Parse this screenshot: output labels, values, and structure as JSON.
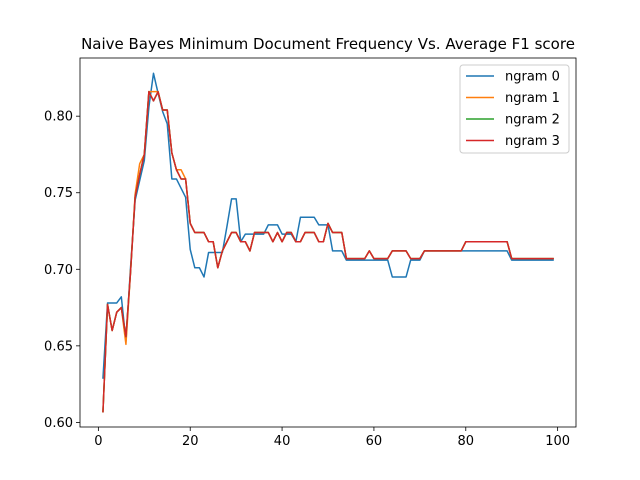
{
  "chart_data": {
    "type": "line",
    "title": "Naive Bayes Minimum Document Frequency Vs. Average F1 score",
    "xlabel": "",
    "ylabel": "",
    "xlim": [
      -4,
      104
    ],
    "ylim": [
      0.597,
      0.838
    ],
    "xticks": [
      0,
      20,
      40,
      60,
      80,
      100
    ],
    "yticks": [
      0.6,
      0.65,
      0.7,
      0.75,
      0.8
    ],
    "xtick_labels": [
      "0",
      "20",
      "40",
      "60",
      "80",
      "100"
    ],
    "ytick_labels": [
      "0.60",
      "0.65",
      "0.70",
      "0.75",
      "0.80"
    ],
    "grid": false,
    "legend_position": "top-right",
    "x": [
      1,
      2,
      3,
      4,
      5,
      6,
      7,
      8,
      9,
      10,
      11,
      12,
      13,
      14,
      15,
      16,
      17,
      18,
      19,
      20,
      21,
      22,
      23,
      24,
      25,
      26,
      27,
      28,
      29,
      30,
      31,
      32,
      33,
      34,
      35,
      36,
      37,
      38,
      39,
      40,
      41,
      42,
      43,
      44,
      45,
      46,
      47,
      48,
      49,
      50,
      51,
      52,
      53,
      54,
      55,
      56,
      57,
      58,
      59,
      60,
      61,
      62,
      63,
      64,
      65,
      66,
      67,
      68,
      69,
      70,
      71,
      72,
      73,
      74,
      75,
      76,
      77,
      78,
      79,
      80,
      81,
      82,
      83,
      84,
      85,
      86,
      87,
      88,
      89,
      90,
      91,
      92,
      93,
      94,
      95,
      96,
      97,
      98,
      99
    ],
    "series": [
      {
        "name": "ngram 0",
        "color": "#1f77b4",
        "values": [
          0.629,
          0.678,
          0.678,
          0.678,
          0.682,
          0.653,
          0.701,
          0.745,
          0.758,
          0.771,
          0.806,
          0.828,
          0.815,
          0.803,
          0.795,
          0.759,
          0.759,
          0.753,
          0.747,
          0.713,
          0.701,
          0.701,
          0.695,
          0.711,
          0.711,
          0.711,
          0.711,
          0.728,
          0.746,
          0.746,
          0.718,
          0.723,
          0.723,
          0.723,
          0.723,
          0.723,
          0.729,
          0.729,
          0.729,
          0.723,
          0.723,
          0.723,
          0.718,
          0.734,
          0.734,
          0.734,
          0.734,
          0.729,
          0.729,
          0.729,
          0.712,
          0.712,
          0.712,
          0.706,
          0.706,
          0.706,
          0.706,
          0.706,
          0.706,
          0.706,
          0.706,
          0.706,
          0.706,
          0.695,
          0.695,
          0.695,
          0.695,
          0.706,
          0.706,
          0.706,
          0.712,
          0.712,
          0.712,
          0.712,
          0.712,
          0.712,
          0.712,
          0.712,
          0.712,
          0.712,
          0.712,
          0.712,
          0.712,
          0.712,
          0.712,
          0.712,
          0.712,
          0.712,
          0.712,
          0.706,
          0.706,
          0.706,
          0.706,
          0.706,
          0.706,
          0.706,
          0.706,
          0.706,
          0.706
        ]
      },
      {
        "name": "ngram 1",
        "color": "#ff7f0e",
        "values": [
          0.607,
          0.677,
          0.66,
          0.672,
          0.675,
          0.651,
          0.698,
          0.749,
          0.769,
          0.775,
          0.816,
          0.816,
          0.816,
          0.804,
          0.804,
          0.776,
          0.765,
          0.765,
          0.759,
          0.73,
          0.724,
          0.724,
          0.724,
          0.718,
          0.718,
          0.701,
          0.712,
          0.718,
          0.724,
          0.724,
          0.718,
          0.718,
          0.712,
          0.724,
          0.724,
          0.724,
          0.724,
          0.718,
          0.724,
          0.718,
          0.724,
          0.724,
          0.718,
          0.718,
          0.724,
          0.724,
          0.724,
          0.718,
          0.718,
          0.73,
          0.724,
          0.724,
          0.724,
          0.707,
          0.707,
          0.707,
          0.707,
          0.707,
          0.712,
          0.707,
          0.707,
          0.707,
          0.707,
          0.712,
          0.712,
          0.712,
          0.712,
          0.707,
          0.707,
          0.707,
          0.712,
          0.712,
          0.712,
          0.712,
          0.712,
          0.712,
          0.712,
          0.712,
          0.712,
          0.718,
          0.718,
          0.718,
          0.718,
          0.718,
          0.718,
          0.718,
          0.718,
          0.718,
          0.718,
          0.707,
          0.707,
          0.707,
          0.707,
          0.707,
          0.707,
          0.707,
          0.707,
          0.707,
          0.707
        ]
      },
      {
        "name": "ngram 2",
        "color": "#2ca02c",
        "values": [
          0.607,
          0.677,
          0.66,
          0.672,
          0.675,
          0.656,
          0.698,
          0.747,
          0.762,
          0.775,
          0.816,
          0.81,
          0.816,
          0.804,
          0.804,
          0.776,
          0.765,
          0.759,
          0.759,
          0.73,
          0.724,
          0.724,
          0.724,
          0.718,
          0.718,
          0.701,
          0.712,
          0.718,
          0.724,
          0.724,
          0.718,
          0.718,
          0.712,
          0.724,
          0.724,
          0.724,
          0.724,
          0.718,
          0.724,
          0.718,
          0.724,
          0.724,
          0.718,
          0.718,
          0.724,
          0.724,
          0.724,
          0.718,
          0.718,
          0.73,
          0.724,
          0.724,
          0.724,
          0.707,
          0.707,
          0.707,
          0.707,
          0.707,
          0.712,
          0.707,
          0.707,
          0.707,
          0.707,
          0.712,
          0.712,
          0.712,
          0.712,
          0.707,
          0.707,
          0.707,
          0.712,
          0.712,
          0.712,
          0.712,
          0.712,
          0.712,
          0.712,
          0.712,
          0.712,
          0.718,
          0.718,
          0.718,
          0.718,
          0.718,
          0.718,
          0.718,
          0.718,
          0.718,
          0.718,
          0.707,
          0.707,
          0.707,
          0.707,
          0.707,
          0.707,
          0.707,
          0.707,
          0.707,
          0.707
        ]
      },
      {
        "name": "ngram 3",
        "color": "#d62728",
        "values": [
          0.607,
          0.677,
          0.66,
          0.672,
          0.675,
          0.656,
          0.698,
          0.747,
          0.762,
          0.775,
          0.816,
          0.81,
          0.816,
          0.804,
          0.804,
          0.776,
          0.765,
          0.759,
          0.759,
          0.73,
          0.724,
          0.724,
          0.724,
          0.718,
          0.718,
          0.701,
          0.712,
          0.718,
          0.724,
          0.724,
          0.718,
          0.718,
          0.712,
          0.724,
          0.724,
          0.724,
          0.724,
          0.718,
          0.724,
          0.718,
          0.724,
          0.724,
          0.718,
          0.718,
          0.724,
          0.724,
          0.724,
          0.718,
          0.718,
          0.73,
          0.724,
          0.724,
          0.724,
          0.707,
          0.707,
          0.707,
          0.707,
          0.707,
          0.712,
          0.707,
          0.707,
          0.707,
          0.707,
          0.712,
          0.712,
          0.712,
          0.712,
          0.707,
          0.707,
          0.707,
          0.712,
          0.712,
          0.712,
          0.712,
          0.712,
          0.712,
          0.712,
          0.712,
          0.712,
          0.718,
          0.718,
          0.718,
          0.718,
          0.718,
          0.718,
          0.718,
          0.718,
          0.718,
          0.718,
          0.707,
          0.707,
          0.707,
          0.707,
          0.707,
          0.707,
          0.707,
          0.707,
          0.707,
          0.707
        ]
      }
    ]
  }
}
